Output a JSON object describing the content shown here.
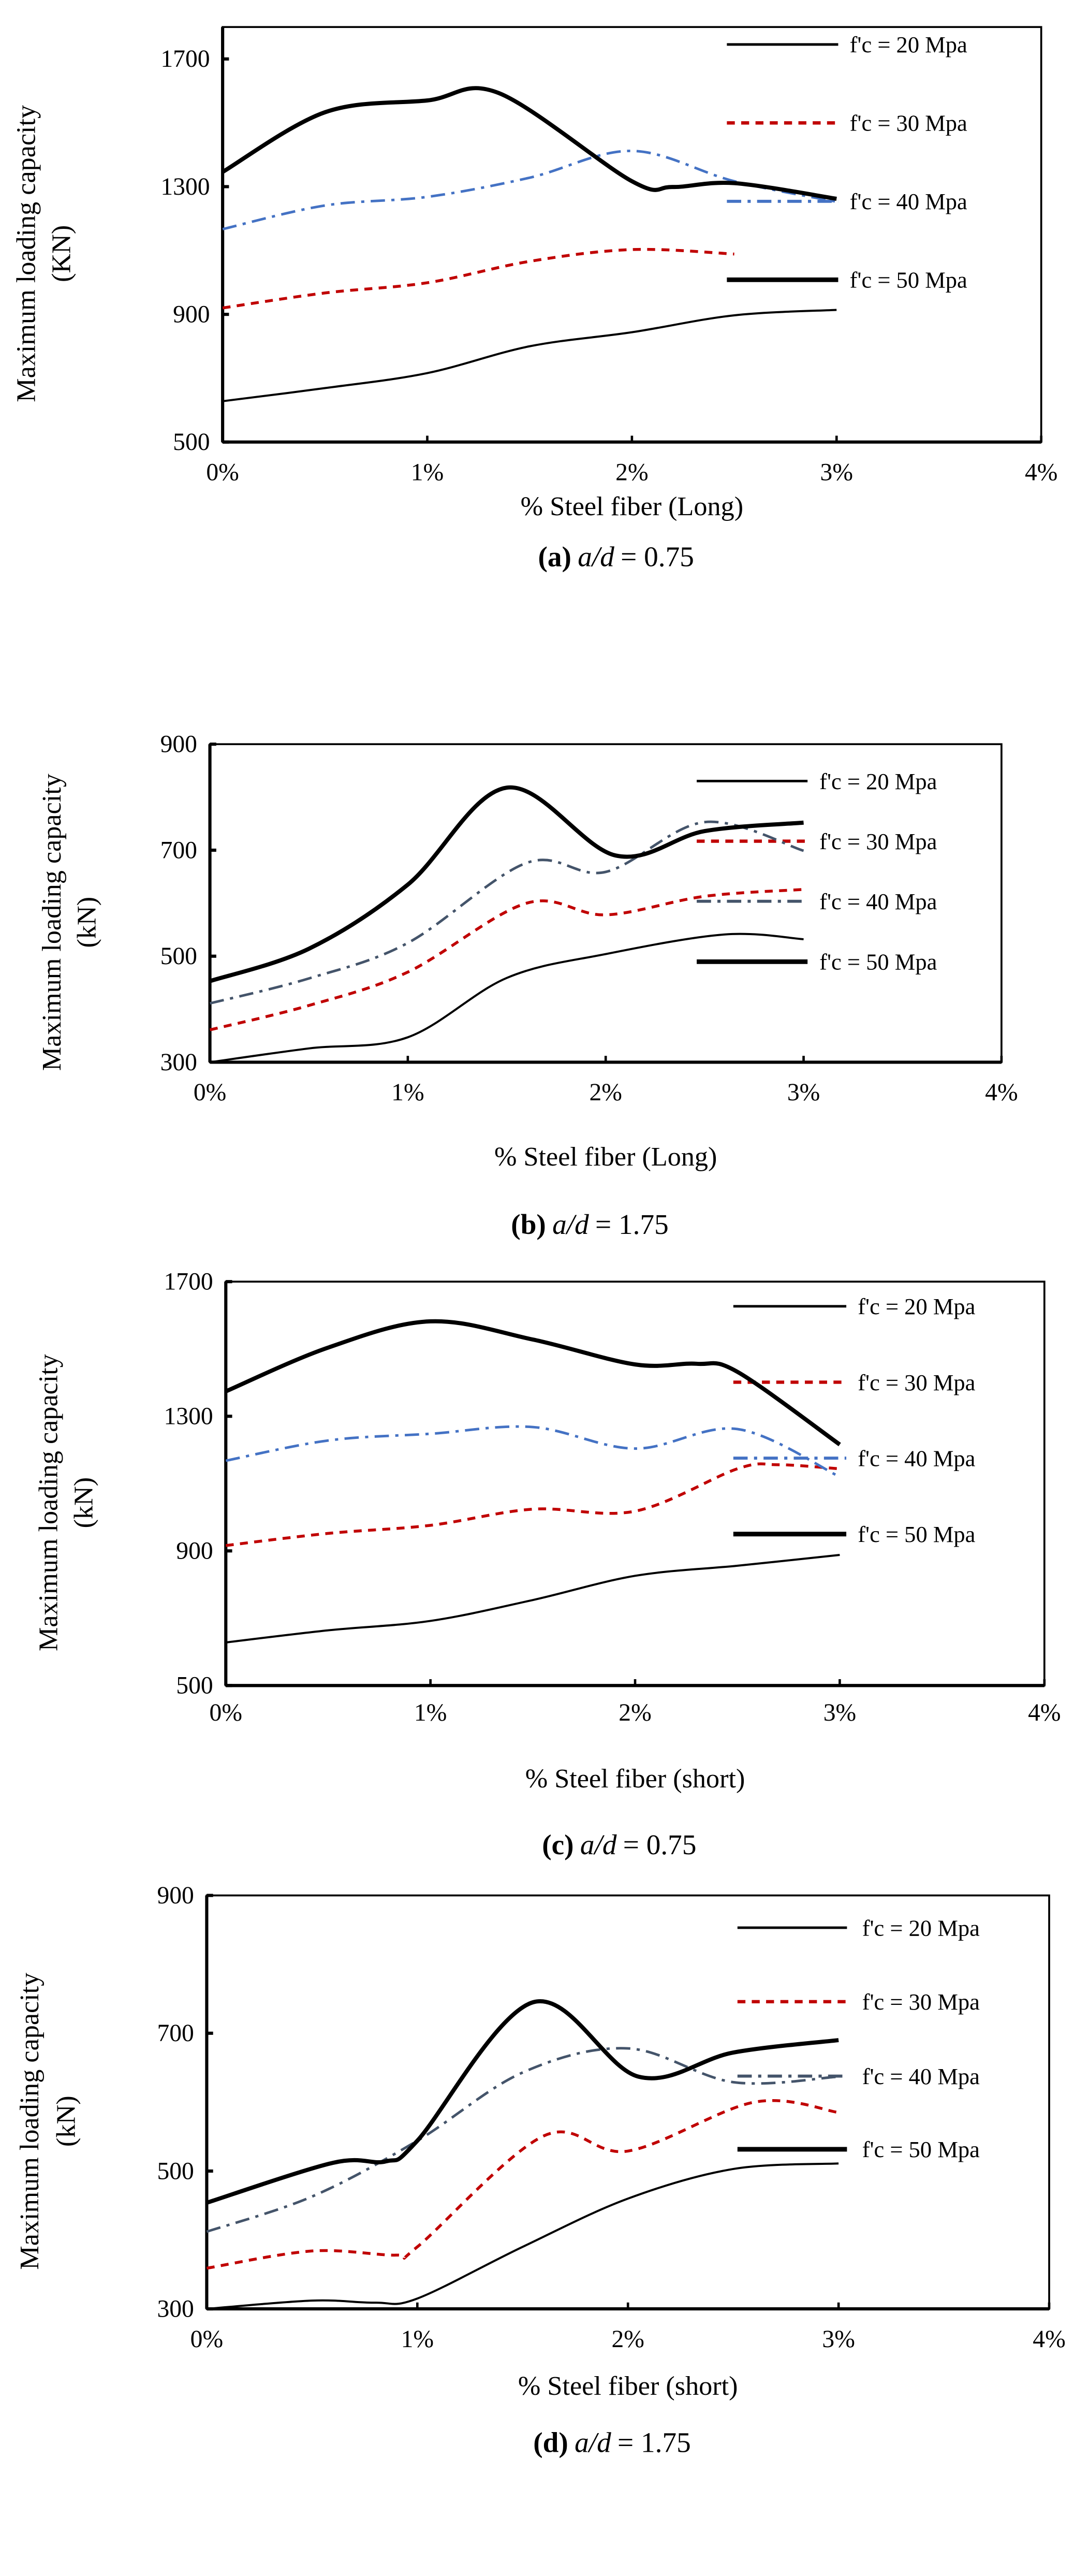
{
  "chart_data": [
    {
      "type": "line",
      "panel": "a",
      "caption": {
        "letter": "(a)",
        "ratio": "a/d",
        "value": "= 0.75"
      },
      "xlabel": "% Steel fiber (Long)",
      "ylabel": "Maximum loading capacity",
      "ylabel_unit": "(KN)",
      "xlim": [
        0,
        4
      ],
      "ylim": [
        500,
        1800
      ],
      "xticks": [
        "0%",
        "1%",
        "2%",
        "3%",
        "4%"
      ],
      "xtick_values": [
        0,
        1,
        2,
        3,
        4
      ],
      "yticks": [
        "500",
        "900",
        "1300",
        "1700"
      ],
      "ytick_values": [
        500,
        900,
        1300,
        1700
      ],
      "legend_position": "top-right",
      "series": [
        {
          "name": "f'c = 20 Mpa",
          "color": "#000000",
          "style": "solid-thin",
          "x": [
            0,
            0.5,
            1,
            1.5,
            2,
            2.5,
            3
          ],
          "y": [
            628,
            669,
            716,
            800,
            844,
            897,
            914
          ]
        },
        {
          "name": "f'c = 30 Mpa",
          "color": "#c00000",
          "style": "dashed",
          "x": [
            0,
            0.5,
            1,
            1.5,
            2,
            2.5
          ],
          "y": [
            920,
            967,
            999,
            1066,
            1103,
            1089
          ]
        },
        {
          "name": "f'c = 40 Mpa",
          "color": "#4472c4",
          "style": "dash-dot",
          "x": [
            0,
            0.5,
            1,
            1.5,
            2,
            2.5,
            3
          ],
          "y": [
            1167,
            1241,
            1268,
            1328,
            1412,
            1317,
            1253
          ]
        },
        {
          "name": "f'c = 50 Mpa",
          "color": "#000000",
          "style": "solid-thick",
          "x": [
            0,
            0.5,
            1,
            1.35,
            2,
            2.2,
            2.5,
            3
          ],
          "y": [
            1346,
            1533,
            1570,
            1593,
            1317,
            1299,
            1311,
            1262
          ]
        }
      ]
    },
    {
      "type": "line",
      "panel": "b",
      "caption": {
        "letter": "(b)",
        "ratio": "a/d",
        "value": "= 1.75"
      },
      "xlabel": "% Steel fiber (Long)",
      "ylabel": "Maximum loading capacity",
      "ylabel_unit": "(kN)",
      "xlim": [
        0,
        4
      ],
      "ylim": [
        300,
        900
      ],
      "xticks": [
        "0%",
        "1%",
        "2%",
        "3%",
        "4%"
      ],
      "xtick_values": [
        0,
        1,
        2,
        3,
        4
      ],
      "yticks": [
        "300",
        "500",
        "700",
        "900"
      ],
      "ytick_values": [
        300,
        500,
        700,
        900
      ],
      "legend_position": "right",
      "series": [
        {
          "name": "f'c = 20 Mpa",
          "color": "#000000",
          "style": "solid-thin",
          "x": [
            0,
            0.5,
            1,
            1.5,
            2,
            2.6,
            3
          ],
          "y": [
            300,
            326,
            347,
            459,
            504,
            541,
            532
          ]
        },
        {
          "name": "f'c = 30 Mpa",
          "color": "#c00000",
          "style": "dashed",
          "x": [
            0,
            0.5,
            1,
            1.6,
            2,
            2.5,
            3
          ],
          "y": [
            361,
            407,
            470,
            600,
            578,
            613,
            626
          ]
        },
        {
          "name": "f'c = 40 Mpa",
          "color": "#44546a",
          "style": "dash-dot",
          "x": [
            0,
            0.5,
            1,
            1.6,
            2,
            2.5,
            3
          ],
          "y": [
            411,
            458,
            525,
            676,
            659,
            753,
            699
          ]
        },
        {
          "name": "f'c = 50 Mpa",
          "color": "#000000",
          "style": "solid-thick",
          "x": [
            0,
            0.5,
            1,
            1.5,
            2.05,
            2.5,
            3
          ],
          "y": [
            453,
            514,
            635,
            818,
            690,
            736,
            752
          ]
        }
      ]
    },
    {
      "type": "line",
      "panel": "c",
      "caption": {
        "letter": "(c)",
        "ratio": "a/d",
        "value": "= 0.75"
      },
      "xlabel": "% Steel fiber (short)",
      "ylabel": "Maximum loading capacity",
      "ylabel_unit": "(kN)",
      "xlim": [
        0,
        4
      ],
      "ylim": [
        500,
        1700
      ],
      "xticks": [
        "0%",
        "1%",
        "2%",
        "3%",
        "4%"
      ],
      "xtick_values": [
        0,
        1,
        2,
        3,
        4
      ],
      "yticks": [
        "500",
        "900",
        "1300",
        "1700"
      ],
      "ytick_values": [
        500,
        900,
        1300,
        1700
      ],
      "legend_position": "top-right",
      "series": [
        {
          "name": "f'c = 20 Mpa",
          "color": "#000000",
          "style": "solid-thin",
          "x": [
            0,
            0.5,
            1,
            1.5,
            2,
            2.5,
            3
          ],
          "y": [
            628,
            664,
            692,
            754,
            826,
            856,
            888
          ]
        },
        {
          "name": "f'c = 30 Mpa",
          "color": "#c00000",
          "style": "dashed",
          "x": [
            0,
            0.5,
            1,
            1.5,
            2,
            2.5,
            2.7,
            3
          ],
          "y": [
            916,
            952,
            976,
            1024,
            1018,
            1144,
            1156,
            1144
          ]
        },
        {
          "name": "f'c = 40 Mpa",
          "color": "#4472c4",
          "style": "dash-dot",
          "x": [
            0,
            0.5,
            1,
            1.5,
            2,
            2.5,
            3
          ],
          "y": [
            1168,
            1228,
            1248,
            1268,
            1204,
            1262,
            1120
          ]
        },
        {
          "name": "f'c = 50 Mpa",
          "color": "#000000",
          "style": "solid-thick",
          "x": [
            0,
            0.5,
            1,
            1.5,
            2,
            2.3,
            2.5,
            3
          ],
          "y": [
            1374,
            1504,
            1582,
            1528,
            1454,
            1456,
            1432,
            1216
          ]
        }
      ]
    },
    {
      "type": "line",
      "panel": "d",
      "caption": {
        "letter": "(d)",
        "ratio": "a/d",
        "value": "= 1.75"
      },
      "xlabel": "% Steel fiber (short)",
      "ylabel": "Maximum loading capacity",
      "ylabel_unit": "(kN)",
      "xlim": [
        0,
        4
      ],
      "ylim": [
        300,
        900
      ],
      "xticks": [
        "0%",
        "1%",
        "2%",
        "3%",
        "4%"
      ],
      "xtick_values": [
        0,
        1,
        2,
        3,
        4
      ],
      "yticks": [
        "300",
        "500",
        "700",
        "900"
      ],
      "ytick_values": [
        300,
        500,
        700,
        900
      ],
      "legend_position": "top-right",
      "series": [
        {
          "name": "f'c = 20 Mpa",
          "color": "#000000",
          "style": "solid-thin",
          "x": [
            0,
            0.5,
            0.8,
            1,
            1.5,
            2,
            2.5,
            3
          ],
          "y": [
            300,
            312,
            309,
            315,
            390,
            460,
            503,
            511
          ]
        },
        {
          "name": "f'c = 30 Mpa",
          "color": "#c00000",
          "style": "dashed",
          "x": [
            0,
            0.5,
            0.9,
            1,
            1.6,
            2,
            2.6,
            3
          ],
          "y": [
            359,
            384,
            378,
            390,
            551,
            529,
            600,
            585
          ]
        },
        {
          "name": "f'c = 40 Mpa",
          "color": "#44546a",
          "style": "dash-dot",
          "x": [
            0,
            0.5,
            1,
            1.5,
            2,
            2.5,
            3
          ],
          "y": [
            412,
            463,
            544,
            643,
            678,
            629,
            637
          ]
        },
        {
          "name": "f'c = 50 Mpa",
          "color": "#000000",
          "style": "solid-thick",
          "x": [
            0,
            0.6,
            0.85,
            1,
            1.55,
            2.05,
            2.5,
            3
          ],
          "y": [
            454,
            512,
            514,
            544,
            745,
            637,
            672,
            690
          ]
        }
      ]
    }
  ]
}
